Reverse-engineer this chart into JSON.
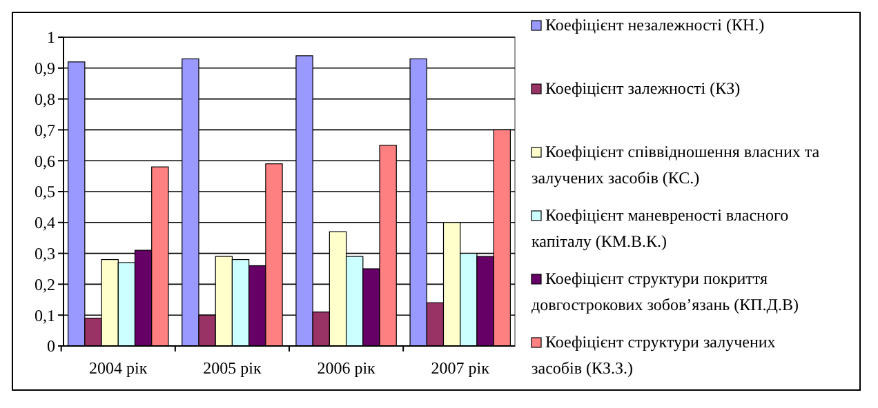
{
  "chart_data": {
    "type": "bar",
    "categories": [
      "2004 рік",
      "2005 рік",
      "2006 рік",
      "2007 рік"
    ],
    "series": [
      {
        "name": "Коефіцієнт незалежності (КН.)",
        "color": "#9999ff",
        "values": [
          0.92,
          0.93,
          0.94,
          0.93
        ]
      },
      {
        "name": "Коефіцієнт залежності (КЗ)",
        "color": "#993366",
        "values": [
          0.09,
          0.1,
          0.11,
          0.14
        ]
      },
      {
        "name": "Коефіцієнт співвідношення власних та залучених засобів (КС.)",
        "color": "#ffffcc",
        "values": [
          0.28,
          0.29,
          0.37,
          0.4
        ]
      },
      {
        "name": "Коефіцієнт маневреності власного капіталу (КМ.В.К.)",
        "color": "#ccffff",
        "values": [
          0.27,
          0.28,
          0.29,
          0.3
        ]
      },
      {
        "name": "Коефіцієнт структури покриття довгострокових зобов’язань (КП.Д.В)",
        "color": "#660066",
        "values": [
          0.31,
          0.26,
          0.25,
          0.29
        ]
      },
      {
        "name": "Коефіцієнт структури залучених засобів (КЗ.З.)",
        "color": "#ff8080",
        "values": [
          0.58,
          0.59,
          0.65,
          0.7
        ]
      }
    ],
    "ylim": [
      0,
      1
    ],
    "yticks": [
      0,
      {
        "value": 0.1,
        "label": "0,1"
      },
      {
        "value": 0.2,
        "label": "0,2"
      },
      {
        "value": 0.3,
        "label": "0,3"
      },
      {
        "value": 0.4,
        "label": "0,4"
      },
      {
        "value": 0.5,
        "label": "0,5"
      },
      {
        "value": 0.6,
        "label": "0,6"
      },
      {
        "value": 0.7,
        "label": "0,7"
      },
      {
        "value": 0.8,
        "label": "0,8"
      },
      {
        "value": 0.9,
        "label": "0,9"
      },
      1
    ],
    "grid": "y",
    "legend": "right"
  }
}
